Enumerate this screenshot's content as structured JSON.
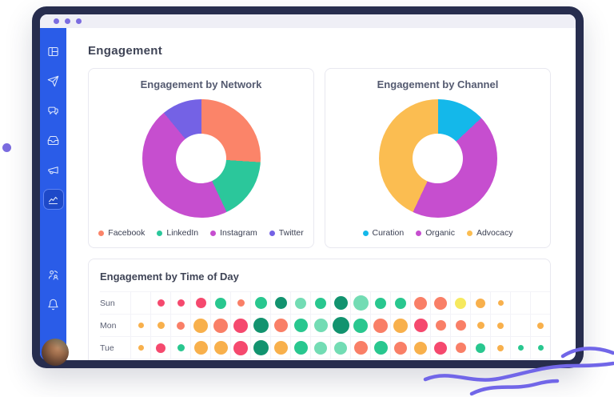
{
  "theme": {
    "frame_color": "#272d4e",
    "topbar_color": "#efeff6",
    "window_dot_color": "#7b6ce0",
    "sidebar_color": "#2a5ce8",
    "sidebar_active_color": "#1e49c8",
    "accent_purple": "#7166e8",
    "card_border": "#e8e8f0"
  },
  "window": {
    "dots": [
      "dot",
      "dot",
      "dot"
    ]
  },
  "page": {
    "title": "Engagement"
  },
  "sidebar": {
    "items": [
      {
        "icon": "dashboard-icon",
        "active": false
      },
      {
        "icon": "send-icon",
        "active": false
      },
      {
        "icon": "conversations-icon",
        "active": false
      },
      {
        "icon": "inbox-icon",
        "active": false
      },
      {
        "icon": "megaphone-icon",
        "active": false
      },
      {
        "icon": "analytics-icon",
        "active": true
      }
    ],
    "bottom_items": [
      {
        "icon": "user-switch-icon"
      },
      {
        "icon": "bell-icon"
      }
    ],
    "avatar": "user-avatar"
  },
  "chart_data": [
    {
      "type": "pie",
      "title": "Engagement by Network",
      "labels": [
        "Facebook",
        "LinkedIn",
        "Instagram",
        "Twitter"
      ],
      "values": [
        26,
        17,
        46,
        11
      ],
      "colors": [
        "#fb8469",
        "#2bc79b",
        "#c64ecf",
        "#7462e5"
      ],
      "donut_hole": 0.42,
      "legend_position": "bottom"
    },
    {
      "type": "pie",
      "title": "Engagement by Channel",
      "labels": [
        "Curation",
        "Organic",
        "Advocacy"
      ],
      "values": [
        13,
        44,
        43
      ],
      "colors": [
        "#14b8ea",
        "#c64ecf",
        "#fbbd51"
      ],
      "donut_hole": 0.42,
      "legend_position": "bottom"
    },
    {
      "type": "bubble-grid",
      "title": "Engagement by Time of Day",
      "rows": [
        "Sun",
        "Mon",
        "Tue"
      ],
      "columns": 21,
      "palette": {
        "red": "#f5496e",
        "salmon": "#f97f67",
        "orange": "#f8b04c",
        "yellow": "#f6e95e",
        "green": "#29c78f",
        "dgreen": "#12936f",
        "lgreen": "#73dcb4"
      },
      "cells": [
        [
          null,
          [
            "red",
            9
          ],
          [
            "red",
            9
          ],
          [
            "red",
            13
          ],
          [
            "green",
            14
          ],
          [
            "salmon",
            9
          ],
          [
            "green",
            15
          ],
          [
            "dgreen",
            15
          ],
          [
            "lgreen",
            14
          ],
          [
            "green",
            14
          ],
          [
            "dgreen",
            17
          ],
          [
            "lgreen",
            19
          ],
          [
            "green",
            14
          ],
          [
            "green",
            14
          ],
          [
            "salmon",
            16
          ],
          [
            "salmon",
            16
          ],
          [
            "yellow",
            14
          ],
          [
            "orange",
            12
          ],
          [
            "orange",
            7
          ],
          null,
          null
        ],
        [
          [
            "orange",
            7
          ],
          [
            "orange",
            9
          ],
          [
            "salmon",
            10
          ],
          [
            "orange",
            18
          ],
          [
            "salmon",
            18
          ],
          [
            "red",
            18
          ],
          [
            "dgreen",
            19
          ],
          [
            "salmon",
            17
          ],
          [
            "green",
            17
          ],
          [
            "lgreen",
            17
          ],
          [
            "dgreen",
            21
          ],
          [
            "green",
            18
          ],
          [
            "salmon",
            18
          ],
          [
            "orange",
            18
          ],
          [
            "red",
            17
          ],
          [
            "salmon",
            13
          ],
          [
            "salmon",
            13
          ],
          [
            "orange",
            9
          ],
          [
            "orange",
            8
          ],
          null,
          [
            "orange",
            8
          ]
        ],
        [
          [
            "orange",
            7
          ],
          [
            "red",
            12
          ],
          [
            "green",
            9
          ],
          [
            "orange",
            17
          ],
          [
            "orange",
            17
          ],
          [
            "red",
            18
          ],
          [
            "dgreen",
            19
          ],
          [
            "orange",
            17
          ],
          [
            "green",
            17
          ],
          [
            "lgreen",
            16
          ],
          [
            "lgreen",
            16
          ],
          [
            "salmon",
            17
          ],
          [
            "green",
            17
          ],
          [
            "salmon",
            16
          ],
          [
            "orange",
            16
          ],
          [
            "red",
            16
          ],
          [
            "salmon",
            13
          ],
          [
            "green",
            12
          ],
          [
            "orange",
            8
          ],
          [
            "green",
            7
          ],
          [
            "green",
            7
          ]
        ]
      ]
    }
  ]
}
